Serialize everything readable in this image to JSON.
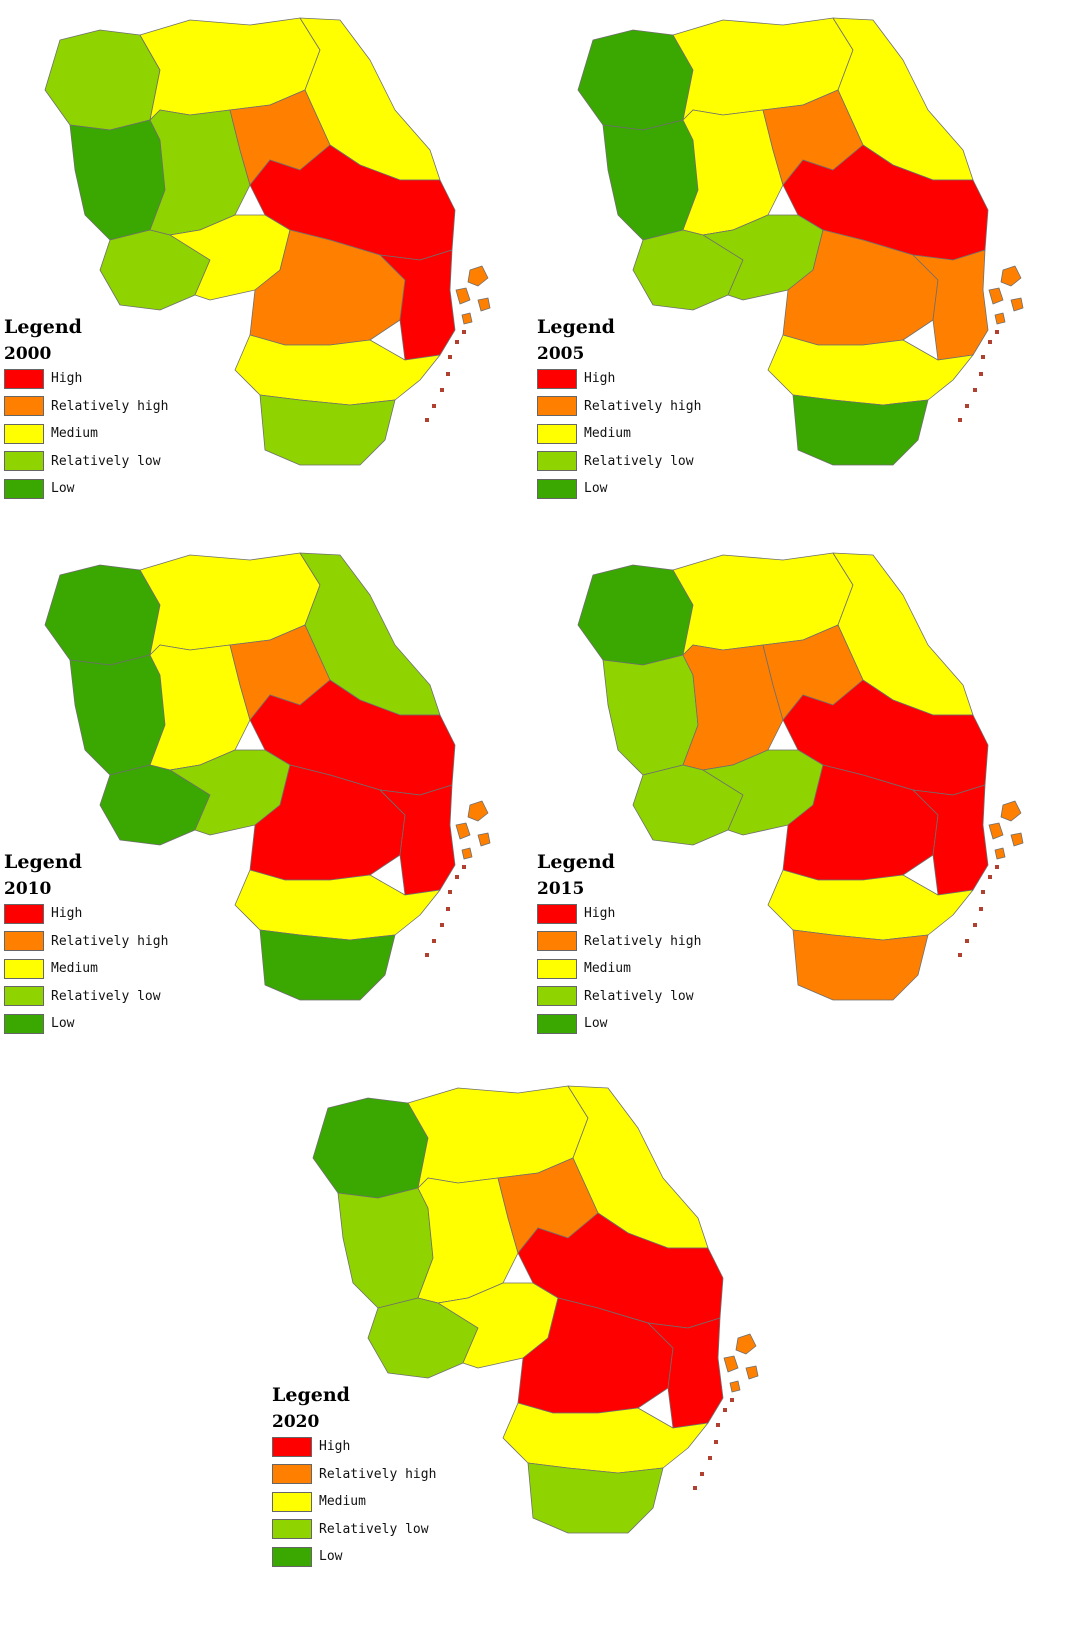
{
  "legend_title": "Legend",
  "colors": {
    "high": "#ff0000",
    "relatively_high": "#ff7f00",
    "medium": "#ffff00",
    "relatively_low": "#8fd400",
    "low": "#3aa800"
  },
  "categories": [
    {
      "key": "high",
      "label": "High"
    },
    {
      "key": "relatively_high",
      "label": "Relatively high"
    },
    {
      "key": "medium",
      "label": "Medium"
    },
    {
      "key": "relatively_low",
      "label": "Relatively low"
    },
    {
      "key": "low",
      "label": "Low"
    }
  ],
  "panels": [
    {
      "year": "2000",
      "regions": {
        "nw": "relatively_low",
        "north": "medium",
        "ne": "medium",
        "west": "low",
        "wc": "relatively_low",
        "cn": "relatively_high",
        "east_core": "high",
        "sw": "relatively_low",
        "sc": "medium",
        "se_band": "relatively_high",
        "east_coast": "high",
        "south": "medium",
        "south_tip": "relatively_low",
        "islands": "relatively_high"
      }
    },
    {
      "year": "2005",
      "regions": {
        "nw": "low",
        "north": "medium",
        "ne": "medium",
        "west": "low",
        "wc": "medium",
        "cn": "relatively_high",
        "east_core": "high",
        "sw": "relatively_low",
        "sc": "relatively_low",
        "se_band": "relatively_high",
        "east_coast": "relatively_high",
        "south": "medium",
        "south_tip": "low",
        "islands": "relatively_high"
      }
    },
    {
      "year": "2010",
      "regions": {
        "nw": "low",
        "north": "medium",
        "ne": "relatively_low",
        "west": "low",
        "wc": "medium",
        "cn": "relatively_high",
        "east_core": "high",
        "sw": "low",
        "sc": "relatively_low",
        "se_band": "high",
        "east_coast": "high",
        "south": "medium",
        "south_tip": "low",
        "islands": "relatively_high"
      }
    },
    {
      "year": "2015",
      "regions": {
        "nw": "low",
        "north": "medium",
        "ne": "medium",
        "west": "relatively_low",
        "wc": "relatively_high",
        "cn": "relatively_high",
        "east_core": "high",
        "sw": "relatively_low",
        "sc": "relatively_low",
        "se_band": "high",
        "east_coast": "high",
        "south": "medium",
        "south_tip": "relatively_high",
        "islands": "relatively_high"
      }
    },
    {
      "year": "2020",
      "regions": {
        "nw": "low",
        "north": "medium",
        "ne": "medium",
        "west": "relatively_low",
        "wc": "medium",
        "cn": "relatively_high",
        "east_core": "high",
        "sw": "relatively_low",
        "sc": "medium",
        "se_band": "high",
        "east_coast": "high",
        "south": "medium",
        "south_tip": "relatively_low",
        "islands": "relatively_high"
      }
    }
  ]
}
